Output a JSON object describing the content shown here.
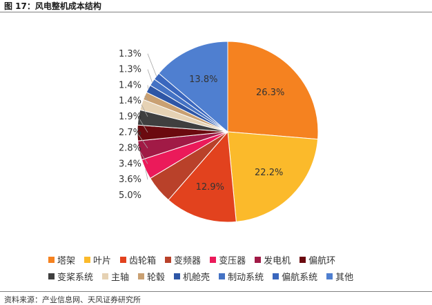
{
  "figure_title": "图 17：风电整机成本结构",
  "source_note": "资料来源：产业信息网、天风证券研究所",
  "chart_data": {
    "type": "pie",
    "start_angle_deg": 0,
    "direction": "clockwise",
    "slices": [
      {
        "name": "塔架",
        "value": 26.3,
        "label": "26.3%",
        "color": "#F58220"
      },
      {
        "name": "叶片",
        "value": 22.2,
        "label": "22.2%",
        "color": "#FBBA2B"
      },
      {
        "name": "齿轮箱",
        "value": 12.9,
        "label": "12.9%",
        "color": "#E2421E"
      },
      {
        "name": "变频器",
        "value": 5.0,
        "label": "5.0%",
        "color": "#B9412A"
      },
      {
        "name": "变压器",
        "value": 3.6,
        "label": "3.6%",
        "color": "#EB1A5A"
      },
      {
        "name": "发电机",
        "value": 3.4,
        "label": "3.4%",
        "color": "#A11A46"
      },
      {
        "name": "偏航环",
        "value": 2.8,
        "label": "2.8%",
        "color": "#6B0A0F"
      },
      {
        "name": "变桨系统",
        "value": 2.7,
        "label": "2.7%",
        "color": "#3F3F3F"
      },
      {
        "name": "主轴",
        "value": 1.9,
        "label": "1.9%",
        "color": "#E6D2B4"
      },
      {
        "name": "轮毂",
        "value": 1.4,
        "label": "1.4%",
        "color": "#C9A072"
      },
      {
        "name": "机舱壳",
        "value": 1.4,
        "label": "1.4%",
        "color": "#2E56A6"
      },
      {
        "name": "制动系统",
        "value": 1.3,
        "label": "1.3%",
        "color": "#4472C4"
      },
      {
        "name": "偏航系统",
        "value": 1.3,
        "label": "1.3%",
        "color": "#3A67BE"
      },
      {
        "name": "其他",
        "value": 13.8,
        "label": "13.8%",
        "color": "#4F7FD0"
      }
    ],
    "legend_position": "bottom",
    "legend_rows": [
      [
        "塔架",
        "叶片",
        "齿轮箱",
        "变频器",
        "变压器",
        "发电机",
        "偏航环"
      ],
      [
        "变桨系统",
        "主轴",
        "轮毂",
        "机舱壳",
        "制动系统",
        "偏航系统",
        "其他"
      ]
    ]
  }
}
